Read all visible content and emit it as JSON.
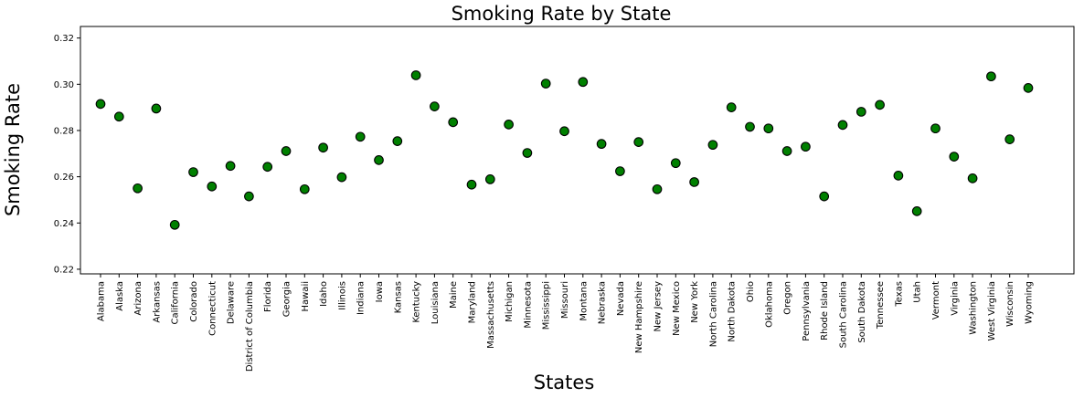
{
  "chart_data": {
    "type": "scatter",
    "title": "Smoking Rate by State",
    "xlabel": "States",
    "ylabel": "Smoking Rate",
    "ylim": [
      0.218,
      0.325
    ],
    "yticks": [
      "0.22",
      "0.24",
      "0.26",
      "0.28",
      "0.30",
      "0.32"
    ],
    "grid": false,
    "marker_color": "#008000",
    "marker_edge_color": "#000000",
    "categories": [
      "Alabama",
      "Alaska",
      "Arizona",
      "Arkansas",
      "California",
      "Colorado",
      "Connecticut",
      "Delaware",
      "District of Columbia",
      "Florida",
      "Georgia",
      "Hawaii",
      "Idaho",
      "Illinois",
      "Indiana",
      "Iowa",
      "Kansas",
      "Kentucky",
      "Louisiana",
      "Maine",
      "Maryland",
      "Massachusetts",
      "Michigan",
      "Minnesota",
      "Mississippi",
      "Missouri",
      "Montana",
      "Nebraska",
      "Nevada",
      "New Hampshire",
      "New Jersey",
      "New Mexico",
      "New York",
      "North Carolina",
      "North Dakota",
      "Ohio",
      "Oklahoma",
      "Oregon",
      "Pennsylvania",
      "Rhode Island",
      "South Carolina",
      "South Dakota",
      "Tennessee",
      "Texas",
      "Utah",
      "Vermont",
      "Virginia",
      "Washington",
      "West Virginia",
      "Wisconsin",
      "Wyoming"
    ],
    "values": [
      0.2915,
      0.286,
      0.255,
      0.2895,
      0.2392,
      0.262,
      0.2558,
      0.2647,
      0.2515,
      0.2643,
      0.2711,
      0.2546,
      0.2726,
      0.2598,
      0.2773,
      0.2672,
      0.2754,
      0.3039,
      0.2904,
      0.2836,
      0.2566,
      0.2589,
      0.2826,
      0.2703,
      0.3003,
      0.2797,
      0.301,
      0.2742,
      0.2624,
      0.275,
      0.2546,
      0.2659,
      0.2577,
      0.2738,
      0.29,
      0.2816,
      0.2809,
      0.2711,
      0.273,
      0.2515,
      0.2824,
      0.2881,
      0.2911,
      0.2605,
      0.2451,
      0.2809,
      0.2687,
      0.2593,
      0.3034,
      0.2762,
      0.2984
    ]
  }
}
